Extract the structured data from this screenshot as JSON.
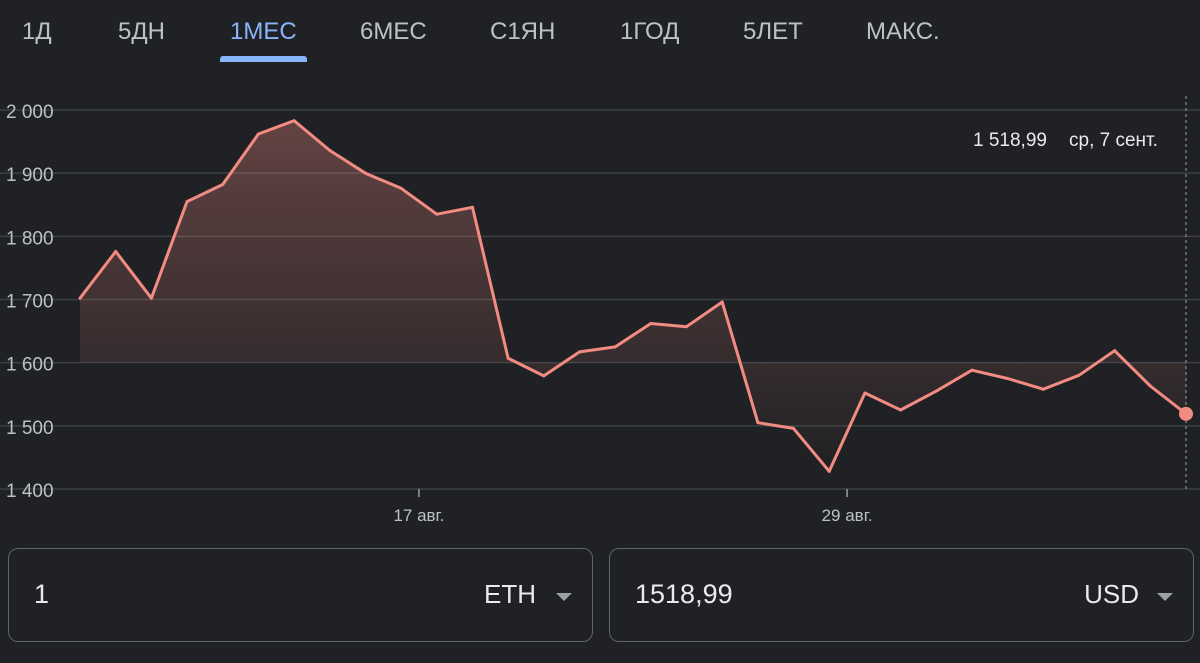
{
  "tabs": {
    "items": [
      "1Д",
      "5ДН",
      "1МЕС",
      "6МЕС",
      "С1ЯН",
      "1ГОД",
      "5ЛЕТ",
      "МАКС."
    ],
    "active_index": 2
  },
  "tooltip": {
    "value": "1 518,99",
    "date": "ср, 7 сент."
  },
  "converter": {
    "from": {
      "amount": "1",
      "currency": "ETH"
    },
    "to": {
      "amount": "1518,99",
      "currency": "USD"
    }
  },
  "colors": {
    "background": "#202124",
    "line": "#f28b82",
    "active_tab": "#8ab4f8",
    "grid": "#3c4043"
  },
  "chart_data": {
    "type": "area",
    "y_tick_labels": [
      "2 000",
      "1 900",
      "1 800",
      "1 700",
      "1 600",
      "1 500",
      "1 400"
    ],
    "y_ticks": [
      2000,
      1900,
      1800,
      1700,
      1600,
      1500,
      1400
    ],
    "ylim": [
      1400,
      2000
    ],
    "x_tick_labels": [
      "17 авг.",
      "29 авг."
    ],
    "x_ticks": [
      9.5,
      21.5
    ],
    "xlim": [
      0,
      31
    ],
    "grid": true,
    "series": [
      {
        "values": [
          1702,
          1776,
          1702,
          1855,
          1882,
          1962,
          1983,
          1936,
          1900,
          1876,
          1835,
          1846,
          1607,
          1579,
          1617,
          1625,
          1662,
          1657,
          1696,
          1505,
          1496,
          1428,
          1552,
          1525,
          1555,
          1588,
          1575,
          1558,
          1580,
          1619,
          1563,
          1519
        ]
      }
    ],
    "highlight": {
      "index": 31,
      "value": 1518.99
    }
  }
}
